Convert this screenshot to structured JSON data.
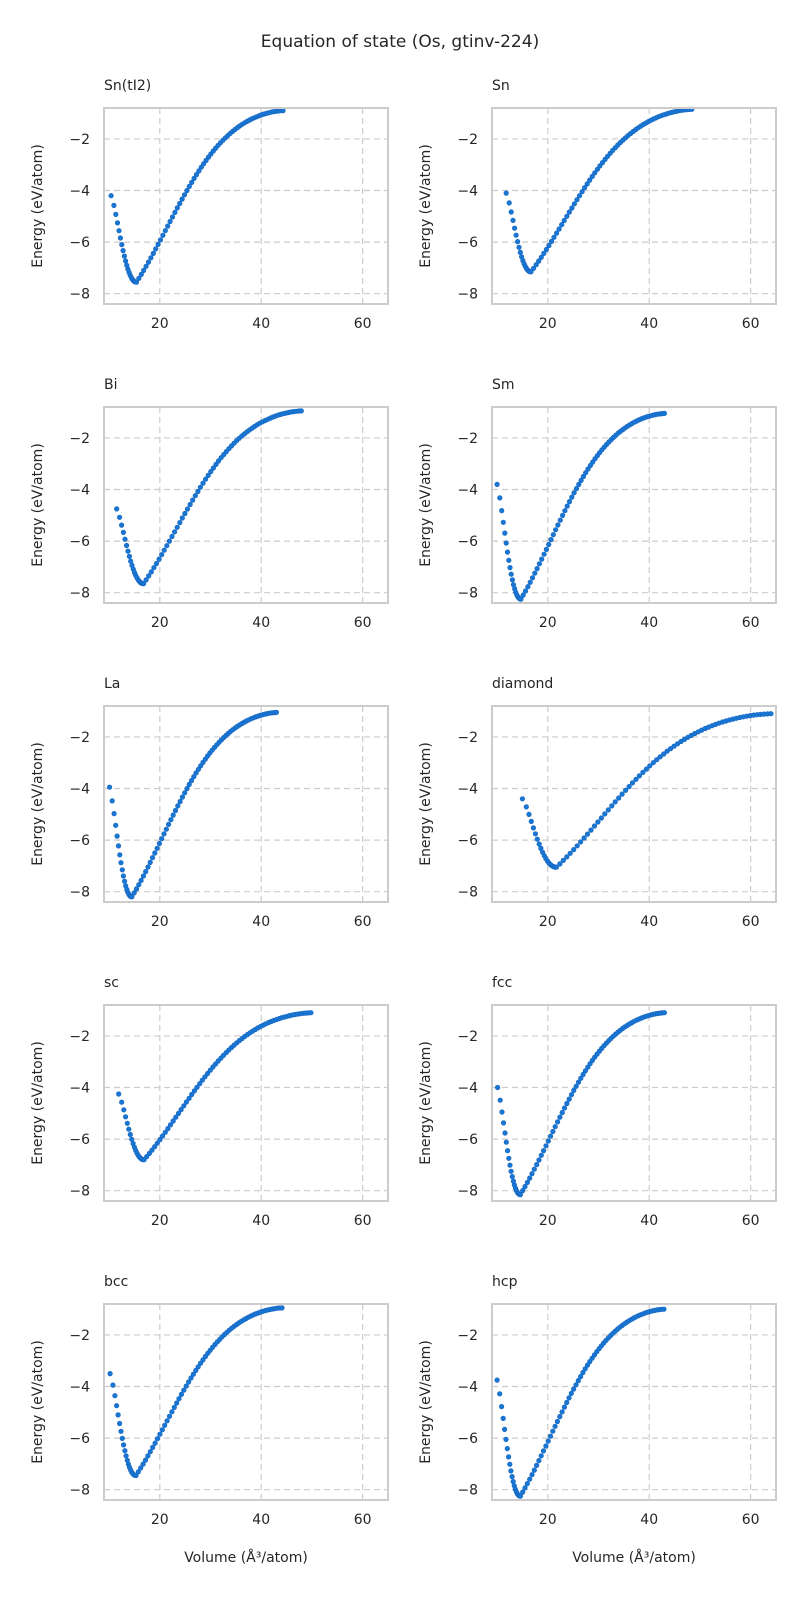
{
  "figure": {
    "title": "Equation of state (Os, gtinv-224)"
  },
  "chart_data": [
    {
      "type": "scatter",
      "title": "Sn(tI2)",
      "xlabel": "",
      "ylabel": "Energy (eV/atom)",
      "xlim": [
        9,
        65
      ],
      "ylim": [
        -8.4,
        -0.8
      ],
      "xticks": [
        20,
        40,
        60
      ],
      "yticks": [
        -2,
        -4,
        -6,
        -8
      ],
      "grid": true,
      "color": "#1976d2",
      "curve": {
        "v_start": 10.4,
        "v_end": 44.3,
        "v_min": 15.4,
        "e_min": -7.55,
        "e_start": -4.2,
        "e_end": -0.9,
        "n": 80
      },
      "points_sampled": [
        {
          "x": 10.4,
          "y": -4.2
        },
        {
          "x": 11.2,
          "y": -5.4
        },
        {
          "x": 12.5,
          "y": -6.7
        },
        {
          "x": 15.4,
          "y": -7.55
        },
        {
          "x": 20,
          "y": -6.6
        },
        {
          "x": 25,
          "y": -4.9
        },
        {
          "x": 30,
          "y": -3.4
        },
        {
          "x": 35,
          "y": -2.4
        },
        {
          "x": 40,
          "y": -1.5
        },
        {
          "x": 44.3,
          "y": -0.9
        }
      ]
    },
    {
      "type": "scatter",
      "title": "Sn",
      "xlabel": "",
      "ylabel": "Energy (eV/atom)",
      "xlim": [
        9,
        65
      ],
      "ylim": [
        -8.4,
        -0.8
      ],
      "xticks": [
        20,
        40,
        60
      ],
      "yticks": [
        -2,
        -4,
        -6,
        -8
      ],
      "grid": true,
      "color": "#1976d2",
      "curve": {
        "v_start": 11.8,
        "v_end": 48.4,
        "v_min": 16.7,
        "e_min": -7.15,
        "e_start": -4.1,
        "e_end": -0.85,
        "n": 80
      },
      "points_sampled": [
        {
          "x": 11.8,
          "y": -4.1
        },
        {
          "x": 13,
          "y": -5.5
        },
        {
          "x": 16.7,
          "y": -7.15
        },
        {
          "x": 20,
          "y": -6.5
        },
        {
          "x": 25,
          "y": -5.2
        },
        {
          "x": 30,
          "y": -3.6
        },
        {
          "x": 35,
          "y": -2.8
        },
        {
          "x": 40,
          "y": -2.2
        },
        {
          "x": 48.4,
          "y": -0.85
        }
      ]
    },
    {
      "type": "scatter",
      "title": "Bi",
      "xlabel": "",
      "ylabel": "Energy (eV/atom)",
      "xlim": [
        9,
        65
      ],
      "ylim": [
        -8.4,
        -0.8
      ],
      "xticks": [
        20,
        40,
        60
      ],
      "yticks": [
        -2,
        -4,
        -6,
        -8
      ],
      "grid": true,
      "color": "#1976d2",
      "curve": {
        "v_start": 11.5,
        "v_end": 47.9,
        "v_min": 16.8,
        "e_min": -7.65,
        "e_start": -4.75,
        "e_end": -0.95,
        "n": 80
      },
      "points_sampled": [
        {
          "x": 11.5,
          "y": -4.75
        },
        {
          "x": 12.5,
          "y": -5.9
        },
        {
          "x": 16.8,
          "y": -7.65
        },
        {
          "x": 20,
          "y": -7.0
        },
        {
          "x": 25,
          "y": -5.4
        },
        {
          "x": 30,
          "y": -4.0
        },
        {
          "x": 35,
          "y": -2.9
        },
        {
          "x": 40,
          "y": -2.1
        },
        {
          "x": 47.9,
          "y": -0.95
        }
      ]
    },
    {
      "type": "scatter",
      "title": "Sm",
      "xlabel": "",
      "ylabel": "Energy (eV/atom)",
      "xlim": [
        9,
        65
      ],
      "ylim": [
        -8.4,
        -0.8
      ],
      "xticks": [
        20,
        40,
        60
      ],
      "yticks": [
        -2,
        -4,
        -6,
        -8
      ],
      "grid": true,
      "color": "#1976d2",
      "curve": {
        "v_start": 10.0,
        "v_end": 43.0,
        "v_min": 14.7,
        "e_min": -8.25,
        "e_start": -3.8,
        "e_end": -1.05,
        "n": 80
      },
      "points_sampled": [
        {
          "x": 10,
          "y": -3.8
        },
        {
          "x": 11,
          "y": -6.2
        },
        {
          "x": 14.7,
          "y": -8.25
        },
        {
          "x": 20,
          "y": -6.8
        },
        {
          "x": 25,
          "y": -5.0
        },
        {
          "x": 30,
          "y": -3.6
        },
        {
          "x": 35,
          "y": -2.5
        },
        {
          "x": 40,
          "y": -1.5
        },
        {
          "x": 43,
          "y": -1.05
        }
      ]
    },
    {
      "type": "scatter",
      "title": "La",
      "xlabel": "",
      "ylabel": "Energy (eV/atom)",
      "xlim": [
        9,
        65
      ],
      "ylim": [
        -8.4,
        -0.8
      ],
      "xticks": [
        20,
        40,
        60
      ],
      "yticks": [
        -2,
        -4,
        -6,
        -8
      ],
      "grid": true,
      "color": "#1976d2",
      "curve": {
        "v_start": 10.1,
        "v_end": 43.0,
        "v_min": 14.5,
        "e_min": -8.2,
        "e_start": -3.95,
        "e_end": -1.05,
        "n": 80
      },
      "points_sampled": [
        {
          "x": 10.1,
          "y": -3.95
        },
        {
          "x": 11,
          "y": -6.3
        },
        {
          "x": 14.5,
          "y": -8.2
        },
        {
          "x": 20,
          "y": -6.7
        },
        {
          "x": 25,
          "y": -5.0
        },
        {
          "x": 30,
          "y": -3.5
        },
        {
          "x": 35,
          "y": -2.4
        },
        {
          "x": 40,
          "y": -1.5
        },
        {
          "x": 43,
          "y": -1.05
        }
      ]
    },
    {
      "type": "scatter",
      "title": "diamond",
      "xlabel": "",
      "ylabel": "Energy (eV/atom)",
      "xlim": [
        9,
        65
      ],
      "ylim": [
        -8.4,
        -0.8
      ],
      "xticks": [
        20,
        40,
        60
      ],
      "yticks": [
        -2,
        -4,
        -6,
        -8
      ],
      "grid": true,
      "color": "#1976d2",
      "curve": {
        "v_start": 15.0,
        "v_end": 64.0,
        "v_min": 21.7,
        "e_min": -7.05,
        "e_start": -4.4,
        "e_end": -1.1,
        "n": 80
      },
      "points_sampled": [
        {
          "x": 15,
          "y": -4.4
        },
        {
          "x": 17,
          "y": -6.0
        },
        {
          "x": 21.7,
          "y": -7.05
        },
        {
          "x": 25,
          "y": -6.8
        },
        {
          "x": 30,
          "y": -5.7
        },
        {
          "x": 35,
          "y": -4.9
        },
        {
          "x": 40,
          "y": -4.0
        },
        {
          "x": 50,
          "y": -2.8
        },
        {
          "x": 64,
          "y": -1.1
        }
      ]
    },
    {
      "type": "scatter",
      "title": "sc",
      "xlabel": "",
      "ylabel": "Energy (eV/atom)",
      "xlim": [
        9,
        65
      ],
      "ylim": [
        -8.4,
        -0.8
      ],
      "xticks": [
        20,
        40,
        60
      ],
      "yticks": [
        -2,
        -4,
        -6,
        -8
      ],
      "grid": true,
      "color": "#1976d2",
      "curve": {
        "v_start": 11.9,
        "v_end": 49.8,
        "v_min": 16.9,
        "e_min": -6.8,
        "e_start": -4.25,
        "e_end": -1.1,
        "n": 80
      },
      "points_sampled": [
        {
          "x": 11.9,
          "y": -4.25
        },
        {
          "x": 13.5,
          "y": -5.7
        },
        {
          "x": 16.9,
          "y": -6.8
        },
        {
          "x": 20,
          "y": -6.4
        },
        {
          "x": 25,
          "y": -5.0
        },
        {
          "x": 30,
          "y": -4.1
        },
        {
          "x": 35,
          "y": -3.2
        },
        {
          "x": 40,
          "y": -2.3
        },
        {
          "x": 49.8,
          "y": -1.1
        }
      ]
    },
    {
      "type": "scatter",
      "title": "fcc",
      "xlabel": "",
      "ylabel": "Energy (eV/atom)",
      "xlim": [
        9,
        65
      ],
      "ylim": [
        -8.4,
        -0.8
      ],
      "xticks": [
        20,
        40,
        60
      ],
      "yticks": [
        -2,
        -4,
        -6,
        -8
      ],
      "grid": true,
      "color": "#1976d2",
      "curve": {
        "v_start": 10.1,
        "v_end": 43.0,
        "v_min": 14.6,
        "e_min": -8.15,
        "e_start": -4.0,
        "e_end": -1.1,
        "n": 80
      },
      "points_sampled": [
        {
          "x": 10.1,
          "y": -4.0
        },
        {
          "x": 11,
          "y": -6.2
        },
        {
          "x": 14.6,
          "y": -8.15
        },
        {
          "x": 20,
          "y": -6.7
        },
        {
          "x": 25,
          "y": -5.0
        },
        {
          "x": 30,
          "y": -3.6
        },
        {
          "x": 35,
          "y": -2.4
        },
        {
          "x": 40,
          "y": -1.5
        },
        {
          "x": 43,
          "y": -1.1
        }
      ]
    },
    {
      "type": "scatter",
      "title": "bcc",
      "xlabel": "Volume (Å³/atom)",
      "ylabel": "Energy (eV/atom)",
      "xlim": [
        9,
        65
      ],
      "ylim": [
        -8.4,
        -0.8
      ],
      "xticks": [
        20,
        40,
        60
      ],
      "yticks": [
        -2,
        -4,
        -6,
        -8
      ],
      "grid": true,
      "color": "#1976d2",
      "curve": {
        "v_start": 10.2,
        "v_end": 44.1,
        "v_min": 15.3,
        "e_min": -7.45,
        "e_start": -3.5,
        "e_end": -0.95,
        "n": 80
      },
      "points_sampled": [
        {
          "x": 10.2,
          "y": -3.5
        },
        {
          "x": 11.2,
          "y": -5.6
        },
        {
          "x": 15.3,
          "y": -7.45
        },
        {
          "x": 20,
          "y": -6.6
        },
        {
          "x": 25,
          "y": -4.9
        },
        {
          "x": 30,
          "y": -3.5
        },
        {
          "x": 35,
          "y": -2.5
        },
        {
          "x": 40,
          "y": -1.6
        },
        {
          "x": 44.1,
          "y": -0.95
        }
      ]
    },
    {
      "type": "scatter",
      "title": "hcp",
      "xlabel": "Volume (Å³/atom)",
      "ylabel": "Energy (eV/atom)",
      "xlim": [
        9,
        65
      ],
      "ylim": [
        -8.4,
        -0.8
      ],
      "xticks": [
        20,
        40,
        60
      ],
      "yticks": [
        -2,
        -4,
        -6,
        -8
      ],
      "grid": true,
      "color": "#1976d2",
      "curve": {
        "v_start": 10.0,
        "v_end": 42.9,
        "v_min": 14.6,
        "e_min": -8.25,
        "e_start": -3.75,
        "e_end": -1.0,
        "n": 80
      },
      "points_sampled": [
        {
          "x": 10,
          "y": -3.75
        },
        {
          "x": 11,
          "y": -6.3
        },
        {
          "x": 14.6,
          "y": -8.25
        },
        {
          "x": 20,
          "y": -6.8
        },
        {
          "x": 25,
          "y": -5.0
        },
        {
          "x": 30,
          "y": -3.6
        },
        {
          "x": 35,
          "y": -2.4
        },
        {
          "x": 40,
          "y": -1.5
        },
        {
          "x": 42.9,
          "y": -1.0
        }
      ]
    }
  ]
}
